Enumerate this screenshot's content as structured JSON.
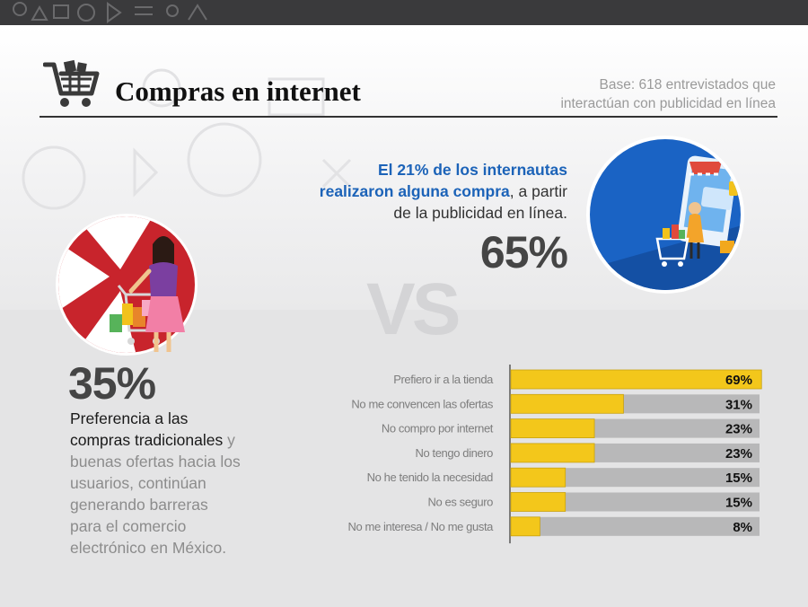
{
  "header": {
    "title": "Compras en internet",
    "base_line1": "Base: 618 entrevistados que",
    "base_line2": "interactúan con publicidad en línea"
  },
  "online": {
    "line1": "El 21% de los internautas",
    "line2_highlight": "realizaron alguna compra",
    "line2_rest": ", a partir",
    "line3": "de la publicidad en línea.",
    "percent": "65%"
  },
  "vs_label": "VS",
  "store": {
    "percent": "35%",
    "line1": "Preferencia a las",
    "line2_dark": "compras tradicionales",
    "line2_rest": " y",
    "line3": "buenas ofertas hacia los",
    "line4": "usuarios, continúan",
    "line5": "generando barreras",
    "line6": "para el comercio",
    "line7": "electrónico en México."
  },
  "colors": {
    "accent_blue": "#1c63b8",
    "bar_fill": "#f3c71b",
    "bar_track": "#b8b8b9",
    "store_red": "#c8242c",
    "online_blue": "#1a63c4"
  },
  "icons": {
    "header": "shopping-cart-icon",
    "online_circle": "online-shopping-illustration",
    "store_circle": "woman-with-shopping-cart-illustration"
  },
  "chart_data": {
    "type": "bar",
    "orientation": "horizontal",
    "categories": [
      "Prefiero ir a la tienda",
      "No me convencen las ofertas",
      "No compro por internet",
      "No tengo dinero",
      "No he tenido la necesidad",
      "No es seguro",
      "No me interesa / No me gusta"
    ],
    "values": [
      69,
      31,
      23,
      23,
      15,
      15,
      8
    ],
    "value_labels": [
      "69%",
      "31%",
      "23%",
      "23%",
      "15%",
      "15%",
      "8%"
    ],
    "unit": "%",
    "xlim": [
      0,
      100
    ],
    "grid": false,
    "legend": "none"
  }
}
